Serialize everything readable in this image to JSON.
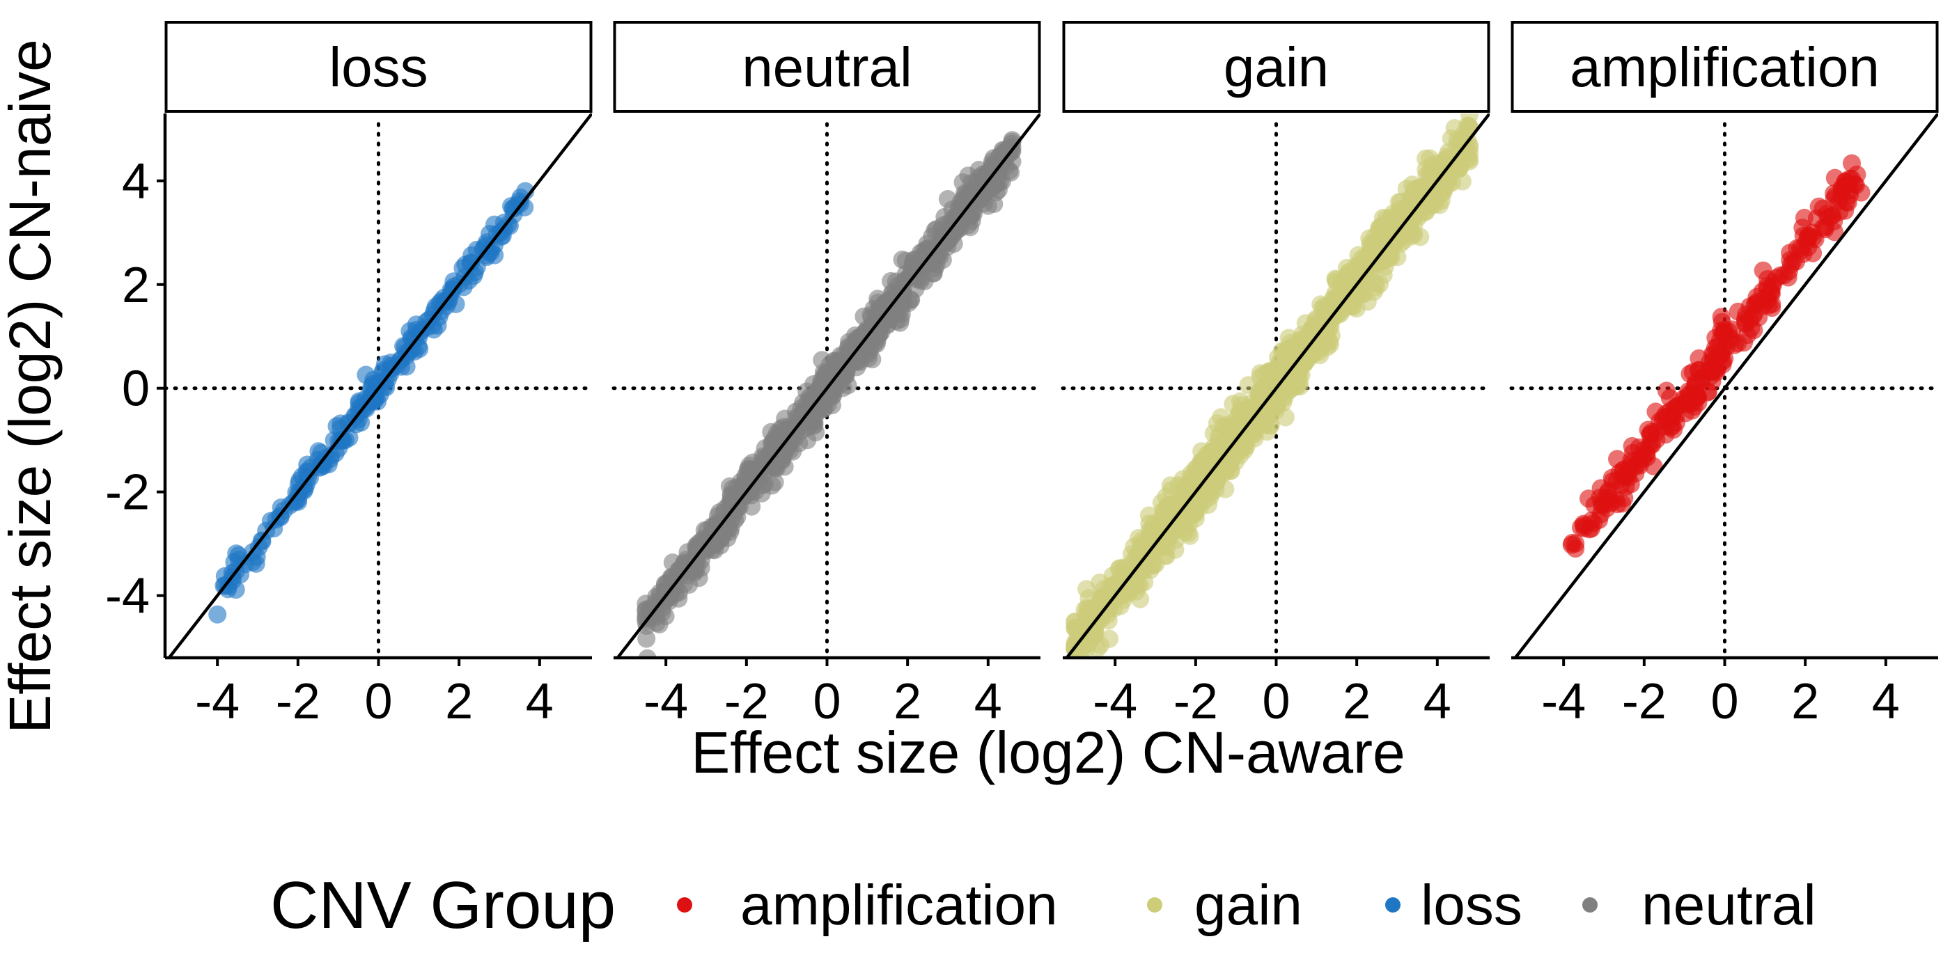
{
  "chart_data": {
    "type": "scatter",
    "facet_by": "CNV Group",
    "xlabel": "Effect size (log2) CN-aware",
    "ylabel": "Effect size (log2) CN-naive",
    "xlim": [
      -5.3,
      5.3
    ],
    "ylim": [
      -5.2,
      5.3
    ],
    "x_ticks": [
      "-4",
      "-2",
      "0",
      "2",
      "4"
    ],
    "y_ticks": [
      "4",
      "2",
      "0",
      "-2",
      "-4"
    ],
    "reference_lines": {
      "identity": "y = x (solid)",
      "zero_lines": "x = 0 and y = 0 (dotted)"
    },
    "panels": [
      {
        "label": "loss",
        "color": "#1f77c4",
        "x_range": [
          -4.0,
          3.7
        ],
        "offset": 0.0,
        "noise": 0.15,
        "count": 220
      },
      {
        "label": "neutral",
        "color": "#808080",
        "x_range": [
          -4.5,
          4.6
        ],
        "offset": 0.0,
        "noise": 0.2,
        "count": 900
      },
      {
        "label": "gain",
        "color": "#cccc79",
        "x_range": [
          -5.0,
          4.8
        ],
        "offset": 0.05,
        "noise": 0.28,
        "count": 1100
      },
      {
        "label": "amplification",
        "color": "#dd1111",
        "x_range": [
          -3.8,
          3.5
        ],
        "offset": 0.8,
        "noise": 0.2,
        "count": 260
      }
    ],
    "legend": {
      "title": "CNV Group",
      "position": "bottom",
      "items": [
        {
          "label": "amplification",
          "color": "#dd1111"
        },
        {
          "label": "gain",
          "color": "#cccc79"
        },
        {
          "label": "loss",
          "color": "#1f77c4"
        },
        {
          "label": "neutral",
          "color": "#808080"
        }
      ]
    },
    "grid": false
  }
}
